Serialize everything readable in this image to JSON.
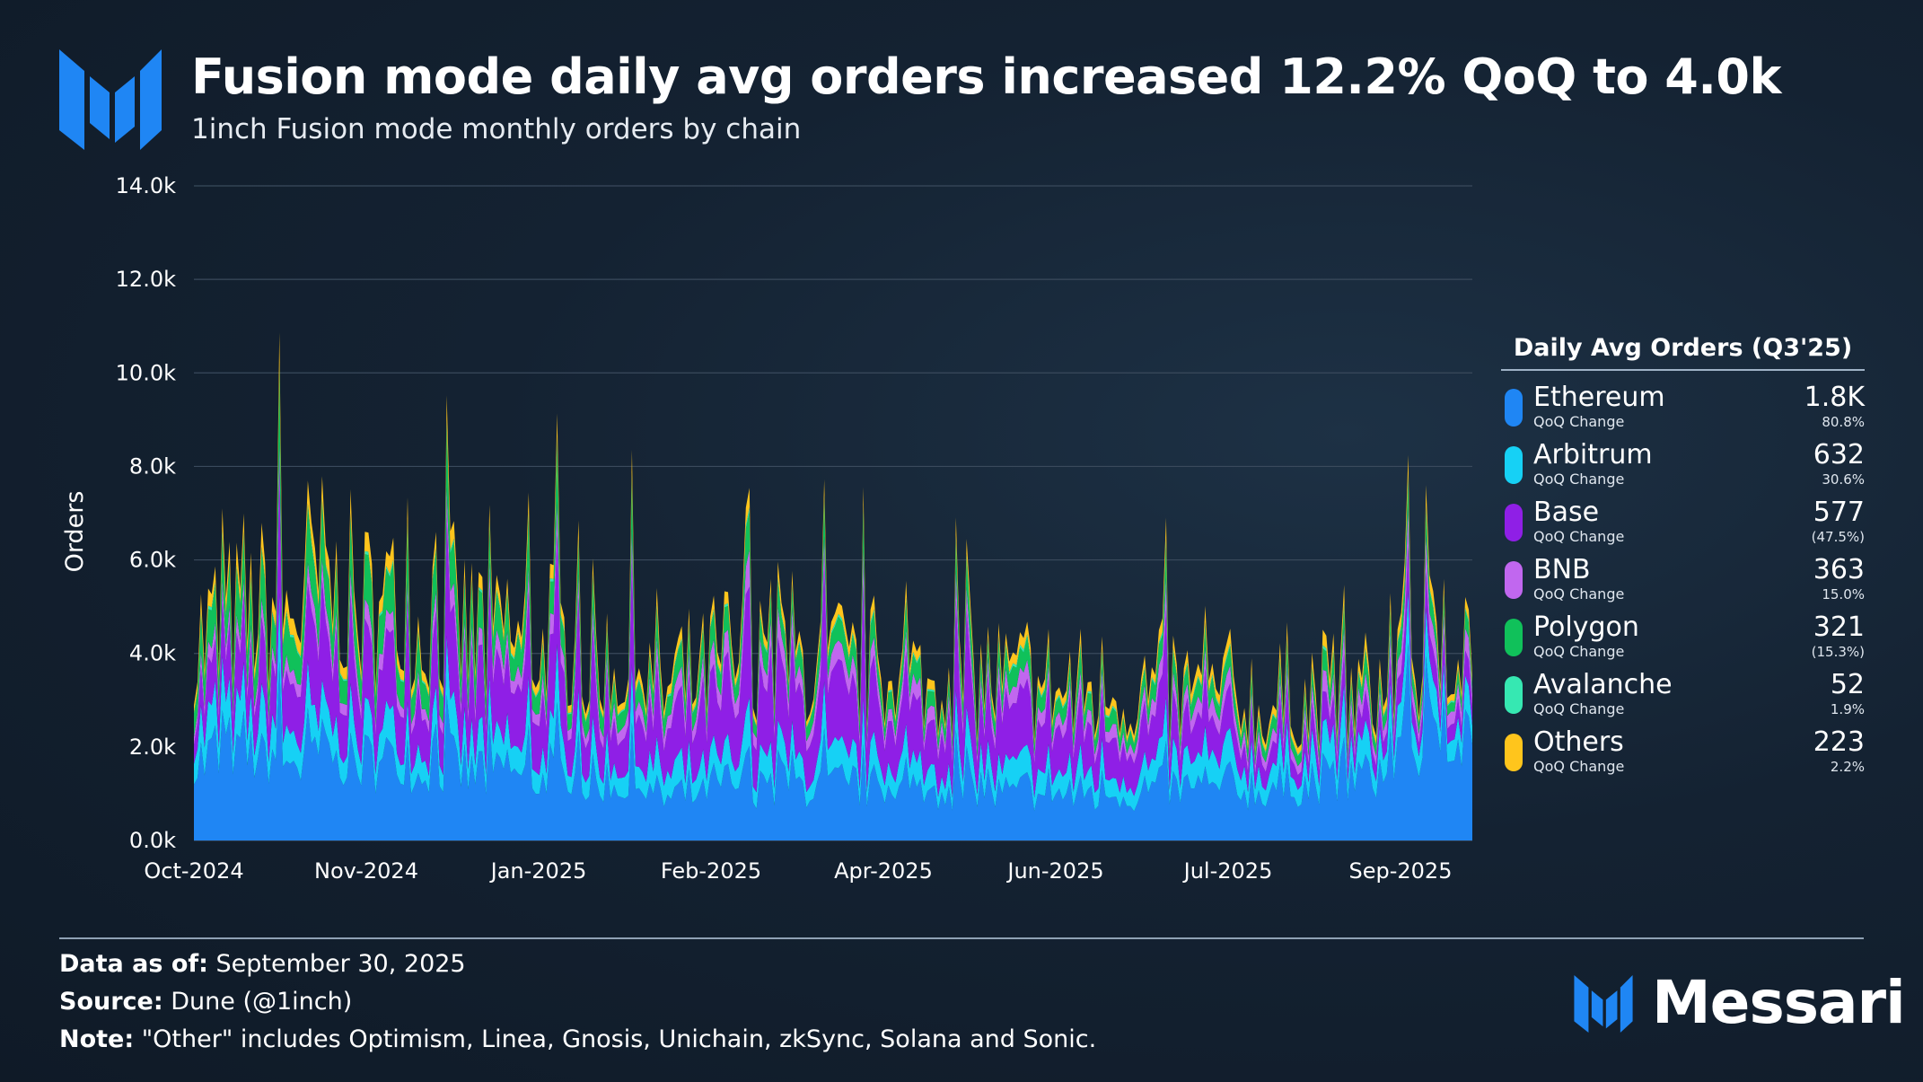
{
  "header": {
    "title": "Fusion mode daily avg orders increased 12.2% QoQ to 4.0k",
    "subtitle": "1inch Fusion mode monthly orders by chain"
  },
  "chart_data": {
    "type": "area",
    "stacked": true,
    "ylabel": "Orders",
    "ylim": [
      0,
      14000
    ],
    "y_ticks": [
      "0.0k",
      "2.0k",
      "4.0k",
      "6.0k",
      "8.0k",
      "10.0k",
      "12.0k",
      "14.0k"
    ],
    "x_ticks": [
      "Oct-2024",
      "Nov-2024",
      "Jan-2025",
      "Feb-2025",
      "Apr-2025",
      "Jun-2025",
      "Jul-2025",
      "Sep-2025"
    ],
    "grid": true,
    "x": [
      "2024-10",
      "2024-11",
      "2024-12",
      "2025-01",
      "2025-02",
      "2025-03",
      "2025-04",
      "2025-05",
      "2025-06",
      "2025-07",
      "2025-08",
      "2025-09"
    ],
    "series": [
      {
        "name": "Ethereum",
        "color": "#1f86f4",
        "values": [
          1900,
          2000,
          1800,
          1600,
          1100,
          1300,
          1250,
          1150,
          1100,
          1200,
          1400,
          2700
        ]
      },
      {
        "name": "Arbitrum",
        "color": "#16d1f5",
        "values": [
          800,
          700,
          650,
          600,
          550,
          500,
          520,
          500,
          500,
          550,
          600,
          700
        ]
      },
      {
        "name": "Base",
        "color": "#8f1fe6",
        "values": [
          700,
          1500,
          1400,
          1300,
          1100,
          1400,
          1150,
          1100,
          1000,
          600,
          450,
          500
        ]
      },
      {
        "name": "BNB",
        "color": "#c167ef",
        "values": [
          300,
          350,
          350,
          350,
          350,
          400,
          330,
          320,
          310,
          300,
          320,
          450
        ]
      },
      {
        "name": "Polygon",
        "color": "#10c15a",
        "values": [
          700,
          900,
          800,
          600,
          450,
          400,
          380,
          380,
          350,
          330,
          320,
          320
        ]
      },
      {
        "name": "Avalanche",
        "color": "#36e8b2",
        "values": [
          60,
          60,
          55,
          55,
          50,
          50,
          50,
          50,
          50,
          50,
          50,
          55
        ]
      },
      {
        "name": "Others",
        "color": "#ffc51c",
        "values": [
          300,
          400,
          300,
          250,
          220,
          200,
          210,
          200,
          210,
          220,
          230,
          250
        ]
      }
    ]
  },
  "legend": {
    "title": "Daily Avg Orders (Q3'25)",
    "qoq_label": "QoQ Change",
    "items": [
      {
        "name": "Ethereum",
        "value": "1.8K",
        "change": "80.8%",
        "color": "#1f86f4"
      },
      {
        "name": "Arbitrum",
        "value": "632",
        "change": "30.6%",
        "color": "#16d1f5"
      },
      {
        "name": "Base",
        "value": "577",
        "change": "(47.5%)",
        "color": "#8f1fe6"
      },
      {
        "name": "BNB",
        "value": "363",
        "change": "15.0%",
        "color": "#c167ef"
      },
      {
        "name": "Polygon",
        "value": "321",
        "change": "(15.3%)",
        "color": "#10c15a"
      },
      {
        "name": "Avalanche",
        "value": "52",
        "change": "1.9%",
        "color": "#36e8b2"
      },
      {
        "name": "Others",
        "value": "223",
        "change": "2.2%",
        "color": "#ffc51c"
      }
    ]
  },
  "footer": {
    "data_label": "Data as of:",
    "data_value": "September 30, 2025",
    "source_label": "Source:",
    "source_value": "Dune (@1inch)",
    "note_label": "Note:",
    "note_value": "\"Other\" includes Optimism, Linea, Gnosis, Unichain, zkSync, Solana and Sonic.",
    "brand": "Messari"
  },
  "colors": {
    "background": "#142232",
    "logo_blue": "#1f86f4"
  }
}
